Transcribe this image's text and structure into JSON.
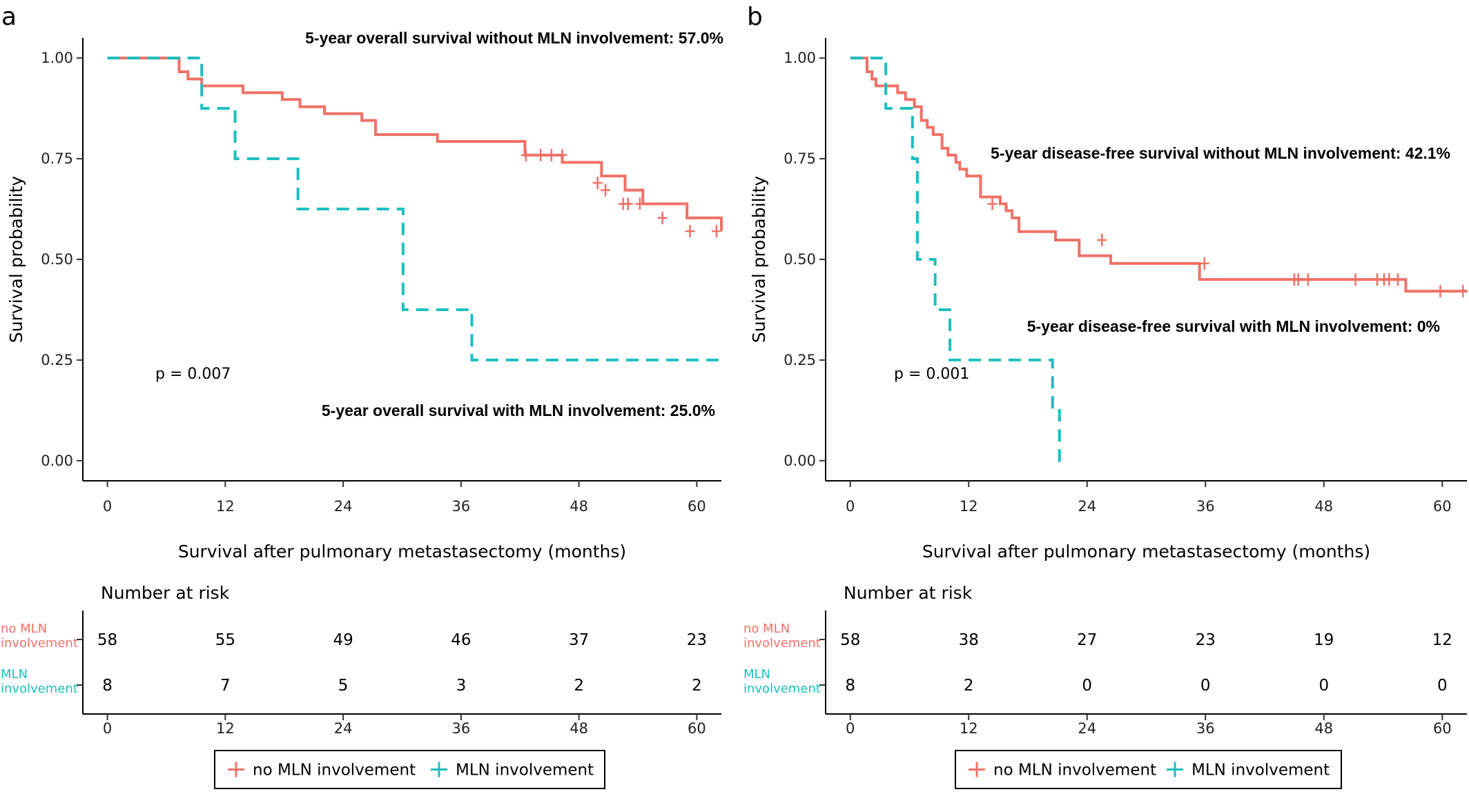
{
  "colors": {
    "no_mln": "#F07167",
    "mln": "#1ABFC0",
    "axis": "#000000"
  },
  "legend_entries": [
    "no MLN involvement",
    "MLN involvement"
  ],
  "chart_data": [
    {
      "type": "line",
      "panel_label": "a",
      "xlabel": "Survival after pulmonary metastasectomy (months)",
      "ylabel": "Survival probability",
      "xlim": [
        -2.5,
        62.5
      ],
      "ylim": [
        -0.05,
        1.05
      ],
      "xticks": [
        0,
        12,
        24,
        36,
        48,
        60
      ],
      "yticks": [
        0,
        0.25,
        0.5,
        0.75,
        1.0
      ],
      "ytick_labels": [
        "0.00",
        "0.25",
        "0.50",
        "0.75",
        "1.00"
      ],
      "grid": false,
      "legend_position": "bottom",
      "annotations": [
        "5-year overall survival without MLN involvement: 57.0%",
        "5-year overall survival with MLN involvement: 25.0%"
      ],
      "p_value": "p = 0.007",
      "series": [
        {
          "name": "no MLN involvement",
          "line_style": "solid",
          "x": [
            0,
            7.3,
            8.2,
            9.6,
            13.8,
            17.8,
            19.6,
            22.1,
            25.9,
            27.3,
            33.6,
            42.5,
            46.3,
            50.3,
            52.7,
            54.5,
            59.0,
            62.5
          ],
          "y": [
            1.0,
            0.966,
            0.948,
            0.931,
            0.914,
            0.897,
            0.879,
            0.862,
            0.845,
            0.81,
            0.793,
            0.759,
            0.741,
            0.707,
            0.672,
            0.638,
            0.603,
            0.57
          ],
          "censor_x": [
            42.6,
            44.1,
            45.2,
            46.3,
            49.9,
            50.7,
            52.5,
            53.0,
            54.2,
            56.5,
            59.3,
            62.0
          ],
          "censor_y": [
            0.759,
            0.759,
            0.759,
            0.759,
            0.69,
            0.672,
            0.638,
            0.638,
            0.638,
            0.603,
            0.57,
            0.57
          ]
        },
        {
          "name": "MLN involvement",
          "line_style": "dashed",
          "x": [
            0,
            9.6,
            13.0,
            19.4,
            30.1,
            37.1,
            62.5
          ],
          "y": [
            1.0,
            0.875,
            0.75,
            0.625,
            0.375,
            0.25,
            0.25
          ],
          "censor_x": [],
          "censor_y": []
        }
      ],
      "risk_table": {
        "title": "Number at risk",
        "times": [
          0,
          12,
          24,
          36,
          48,
          60
        ],
        "rows": [
          {
            "strata_line1": "no MLN",
            "strata_line2": "involvement",
            "values": [
              58,
              55,
              49,
              46,
              37,
              23
            ]
          },
          {
            "strata_line1": "MLN",
            "strata_line2": "involvement",
            "values": [
              8,
              7,
              5,
              3,
              2,
              2
            ]
          }
        ]
      }
    },
    {
      "type": "line",
      "panel_label": "b",
      "xlabel": "Survival after pulmonary metastasectomy (months)",
      "ylabel": "Survival probability",
      "xlim": [
        -2.5,
        62.5
      ],
      "ylim": [
        -0.05,
        1.05
      ],
      "xticks": [
        0,
        12,
        24,
        36,
        48,
        60
      ],
      "yticks": [
        0,
        0.25,
        0.5,
        0.75,
        1.0
      ],
      "ytick_labels": [
        "0.00",
        "0.25",
        "0.50",
        "0.75",
        "1.00"
      ],
      "grid": false,
      "legend_position": "bottom",
      "annotations": [
        "5-year disease-free survival without MLN involvement: 42.1%",
        "5-year disease-free survival with MLN involvement: 0%"
      ],
      "p_value": "p = 0.001",
      "series": [
        {
          "name": "no MLN involvement",
          "line_style": "solid",
          "x": [
            0,
            1.7,
            2.2,
            2.6,
            4.8,
            5.6,
            6.5,
            7.2,
            7.8,
            8.4,
            9.3,
            9.9,
            10.7,
            11.1,
            11.8,
            13.2,
            15.2,
            15.8,
            16.4,
            17.1,
            20.8,
            23.2,
            26.4,
            35.4,
            56.3,
            62.5
          ],
          "y": [
            1.0,
            0.966,
            0.948,
            0.931,
            0.914,
            0.897,
            0.879,
            0.845,
            0.828,
            0.81,
            0.776,
            0.759,
            0.741,
            0.724,
            0.707,
            0.655,
            0.638,
            0.621,
            0.603,
            0.569,
            0.548,
            0.509,
            0.49,
            0.45,
            0.421,
            0.421
          ],
          "censor_x": [
            14.4,
            25.5,
            35.9,
            45.0,
            45.4,
            46.4,
            51.2,
            53.4,
            54.1,
            54.6,
            55.5,
            59.8,
            62.1
          ],
          "censor_y": [
            0.638,
            0.548,
            0.49,
            0.45,
            0.45,
            0.45,
            0.45,
            0.45,
            0.45,
            0.45,
            0.45,
            0.421,
            0.421
          ]
        },
        {
          "name": "MLN involvement",
          "line_style": "dashed",
          "x": [
            0,
            3.6,
            6.3,
            6.8,
            8.6,
            10.1,
            20.5,
            21.2,
            21.6
          ],
          "y": [
            1.0,
            0.875,
            0.75,
            0.5,
            0.375,
            0.25,
            0.125,
            0.0,
            0.0
          ],
          "censor_x": [],
          "censor_y": []
        }
      ],
      "risk_table": {
        "title": "Number at risk",
        "times": [
          0,
          12,
          24,
          36,
          48,
          60
        ],
        "rows": [
          {
            "strata_line1": "no MLN",
            "strata_line2": "involvement",
            "values": [
              58,
              38,
              27,
              23,
              19,
              12
            ]
          },
          {
            "strata_line1": "MLN",
            "strata_line2": "involvement",
            "values": [
              8,
              2,
              0,
              0,
              0,
              0
            ]
          }
        ]
      }
    }
  ]
}
